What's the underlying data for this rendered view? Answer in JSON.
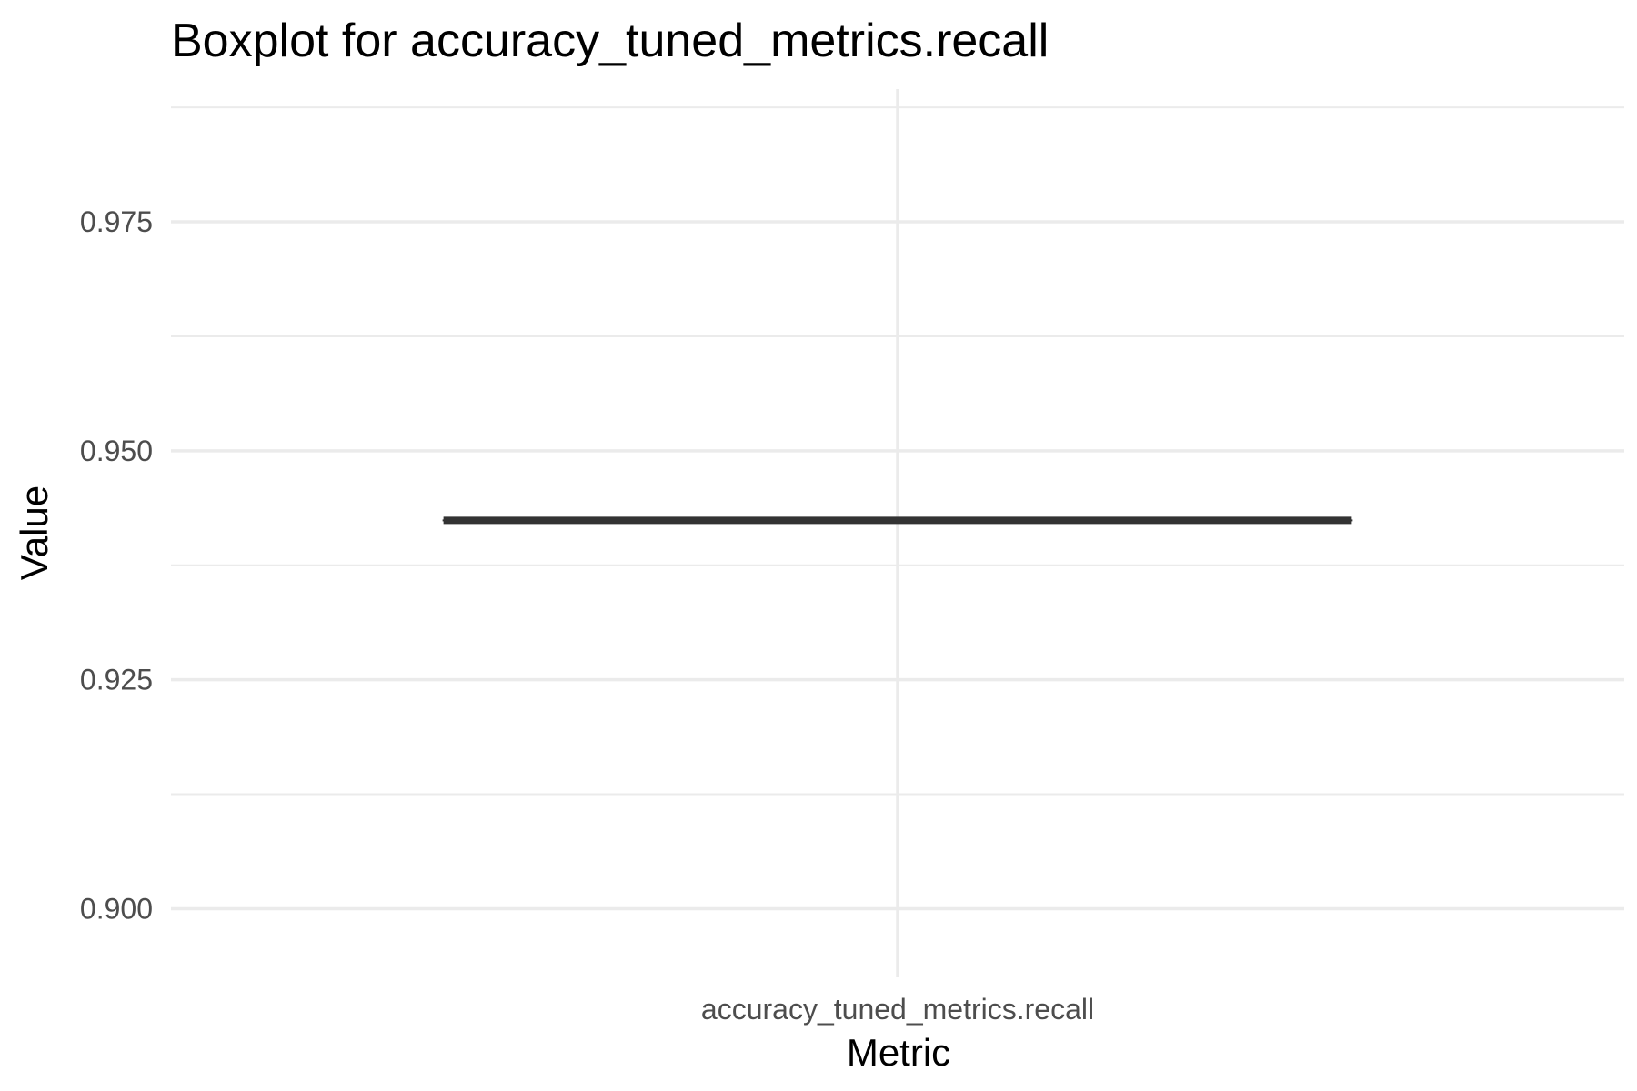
{
  "chart_data": {
    "type": "boxplot",
    "title": "Boxplot for accuracy_tuned_metrics.recall",
    "xlabel": "Metric",
    "ylabel": "Value",
    "categories": [
      "accuracy_tuned_metrics.recall"
    ],
    "series": [
      {
        "category": "accuracy_tuned_metrics.recall",
        "min": 0.9424,
        "q1": 0.9424,
        "median": 0.9424,
        "q3": 0.9424,
        "max": 0.9424
      }
    ],
    "ylim": [
      0.8925,
      0.9895
    ],
    "y_ticks": [
      {
        "value": 0.9,
        "label": "0.900"
      },
      {
        "value": 0.925,
        "label": "0.925"
      },
      {
        "value": 0.95,
        "label": "0.950"
      },
      {
        "value": 0.975,
        "label": "0.975"
      }
    ],
    "y_minor_gridlines": [
      0.9125,
      0.9375,
      0.9625,
      0.9875
    ],
    "grid": true,
    "legend": "none",
    "colors": {
      "background": "#ffffff",
      "grid": "#ebebeb",
      "box": "#333333",
      "tick_text": "#4d4d4d",
      "title_text": "#000000"
    }
  }
}
